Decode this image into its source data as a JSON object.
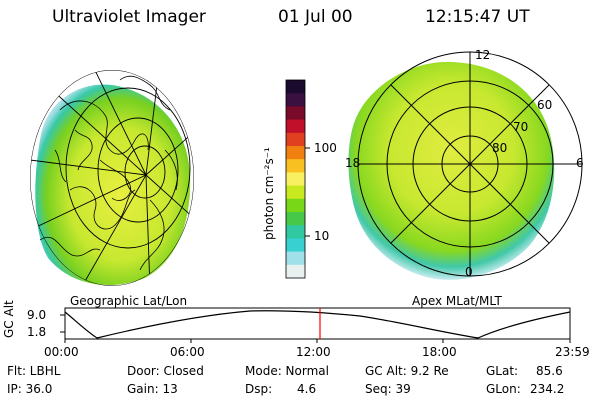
{
  "header": {
    "instrument": "Ultraviolet Imager",
    "date": "01 Jul 00",
    "time": "12:15:47 UT"
  },
  "colorbar": {
    "label": "photon cm⁻²s⁻¹",
    "ticks": [
      "100",
      "10"
    ],
    "scale": "log",
    "colors": [
      "#1a0a2e",
      "#3a1040",
      "#7a0a2a",
      "#c0102a",
      "#e04020",
      "#f08010",
      "#f8c020",
      "#f8f060",
      "#c8e820",
      "#78d818",
      "#48c848",
      "#30c8a0",
      "#38d0d0",
      "#a0e0e8",
      "#e8f0f0"
    ]
  },
  "left_panel": {
    "caption": "Geographic Lat/Lon"
  },
  "right_panel": {
    "caption": "Apex  MLat/MLT",
    "mlt_labels": {
      "top": "12",
      "left": "18",
      "right": "6",
      "bottom": "0"
    },
    "mlat_labels": [
      "60",
      "70",
      "80"
    ]
  },
  "timeline": {
    "axis_label": "GC Alt",
    "y_ticks": [
      "9.0",
      "1.8"
    ],
    "x_ticks": [
      "00:00",
      "06:00",
      "12:00",
      "18:00",
      "23:59"
    ],
    "marker_time": "12:15"
  },
  "footer": {
    "row1": {
      "flt": "Flt: LBHL",
      "door": "Door: Closed",
      "mode": "Mode: Normal",
      "gc_alt": "GC Alt: 9.2 Re",
      "glat_label": "GLat:",
      "glat_value": "85.6"
    },
    "row2": {
      "ip": "IP: 36.0",
      "gain": "Gain: 13",
      "dsp_label": "Dsp:",
      "dsp_value": "4.6",
      "seq": "Seq: 39",
      "glon_label": "GLon:",
      "glon_value": "234.2"
    }
  }
}
